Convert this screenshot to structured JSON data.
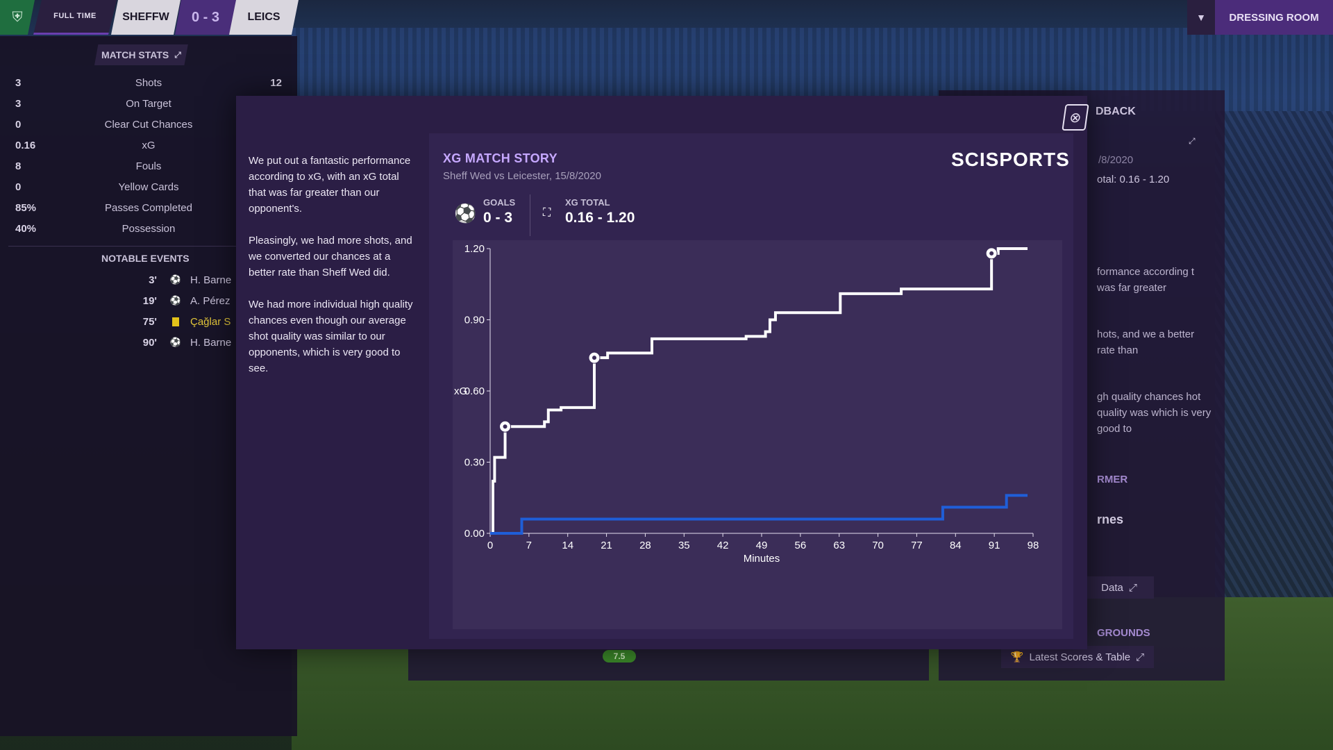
{
  "topbar": {
    "status": "FULL TIME",
    "home_team": "SHEFFW",
    "score": "0 - 3",
    "away_team": "LEICS",
    "dressing_room": "DRESSING ROOM"
  },
  "match_stats": {
    "title": "MATCH STATS",
    "rows": [
      {
        "home": "3",
        "label": "Shots",
        "away": "12"
      },
      {
        "home": "3",
        "label": "On Target",
        "away": ""
      },
      {
        "home": "0",
        "label": "Clear Cut Chances",
        "away": ""
      },
      {
        "home": "0.16",
        "label": "xG",
        "away": ""
      },
      {
        "home": "8",
        "label": "Fouls",
        "away": ""
      },
      {
        "home": "0",
        "label": "Yellow Cards",
        "away": ""
      },
      {
        "home": "85%",
        "label": "Passes Completed",
        "away": ""
      },
      {
        "home": "40%",
        "label": "Possession",
        "away": ""
      }
    ]
  },
  "notable_events": {
    "title": "NOTABLE EVENTS",
    "items": [
      {
        "minute": "3'",
        "type": "goal",
        "player": "H. Barne"
      },
      {
        "minute": "19'",
        "type": "goal",
        "player": "A. Pérez"
      },
      {
        "minute": "75'",
        "type": "yellow-card",
        "player": "Çağlar S"
      },
      {
        "minute": "90'",
        "type": "goal",
        "player": "H. Barne"
      }
    ]
  },
  "background_panel": {
    "title": "DBACK",
    "date": "/8/2020",
    "total": "otal: 0.16 - 1.20",
    "text1": "formance according t was far greater",
    "text2": "hots, and we a better rate than",
    "text3": "gh quality chances hot quality was which is very good to",
    "head_former": "RMER",
    "name": "rnes",
    "data_btn": "Data",
    "head_grounds": "GROUNDS",
    "latest_btn": "Latest Scores & Table",
    "rating": "7.5"
  },
  "modal": {
    "summary": [
      "We put out a fantastic performance according to xG, with an xG total that was far greater than our opponent's.",
      "Pleasingly, we had more shots, and we converted our chances at a better rate than Sheff Wed did.",
      "We had more individual high quality chances even though our average shot quality was similar to our opponents, which is very good to see."
    ],
    "title": "XG MATCH STORY",
    "subtitle": "Sheff Wed vs Leicester, 15/8/2020",
    "brand": "SCISPORTS",
    "goals_label": "GOALS",
    "goals_value": "0 - 3",
    "xg_label": "XG TOTAL",
    "xg_value": "0.16 - 1.20"
  },
  "chart_data": {
    "type": "line",
    "xlabel": "Minutes",
    "ylabel": "xG",
    "xlim": [
      0,
      98
    ],
    "ylim": [
      0,
      1.2
    ],
    "xticks": [
      "0",
      "7",
      "14",
      "21",
      "28",
      "35",
      "42",
      "49",
      "56",
      "63",
      "70",
      "77",
      "84",
      "91",
      "98"
    ],
    "yticks": [
      "0.00",
      "0.30",
      "0.60",
      "0.90",
      "1.20"
    ],
    "series": [
      {
        "color": "#ffffff",
        "step_points": [
          [
            0,
            0
          ],
          [
            0.5,
            0.22
          ],
          [
            0.8,
            0.32
          ],
          [
            2.5,
            0.32
          ],
          [
            2.7,
            0.45
          ],
          [
            9.5,
            0.45
          ],
          [
            9.8,
            0.47
          ],
          [
            10.3,
            0.47
          ],
          [
            10.5,
            0.52
          ],
          [
            12.5,
            0.52
          ],
          [
            12.8,
            0.53
          ],
          [
            18.6,
            0.53
          ],
          [
            18.8,
            0.74
          ],
          [
            21,
            0.74
          ],
          [
            21.2,
            0.76
          ],
          [
            29,
            0.76
          ],
          [
            29.2,
            0.82
          ],
          [
            46,
            0.82
          ],
          [
            46.2,
            0.83
          ],
          [
            49.5,
            0.83
          ],
          [
            49.7,
            0.85
          ],
          [
            50.3,
            0.85
          ],
          [
            50.5,
            0.9
          ],
          [
            51.3,
            0.9
          ],
          [
            51.5,
            0.93
          ],
          [
            63,
            0.93
          ],
          [
            63.2,
            1.01
          ],
          [
            74,
            1.01
          ],
          [
            74.2,
            1.03
          ],
          [
            90.3,
            1.03
          ],
          [
            90.5,
            1.18
          ],
          [
            91.5,
            1.18
          ],
          [
            91.7,
            1.2
          ],
          [
            97,
            1.2
          ]
        ],
        "goal_markers": [
          [
            2.7,
            0.45
          ],
          [
            18.8,
            0.74
          ],
          [
            90.5,
            1.18
          ]
        ]
      },
      {
        "color": "#1f5ed8",
        "step_points": [
          [
            0,
            0
          ],
          [
            5.5,
            0
          ],
          [
            5.7,
            0.06
          ],
          [
            81.5,
            0.06
          ],
          [
            81.7,
            0.11
          ],
          [
            93,
            0.11
          ],
          [
            93.2,
            0.16
          ],
          [
            97,
            0.16
          ]
        ],
        "goal_markers": []
      }
    ]
  }
}
